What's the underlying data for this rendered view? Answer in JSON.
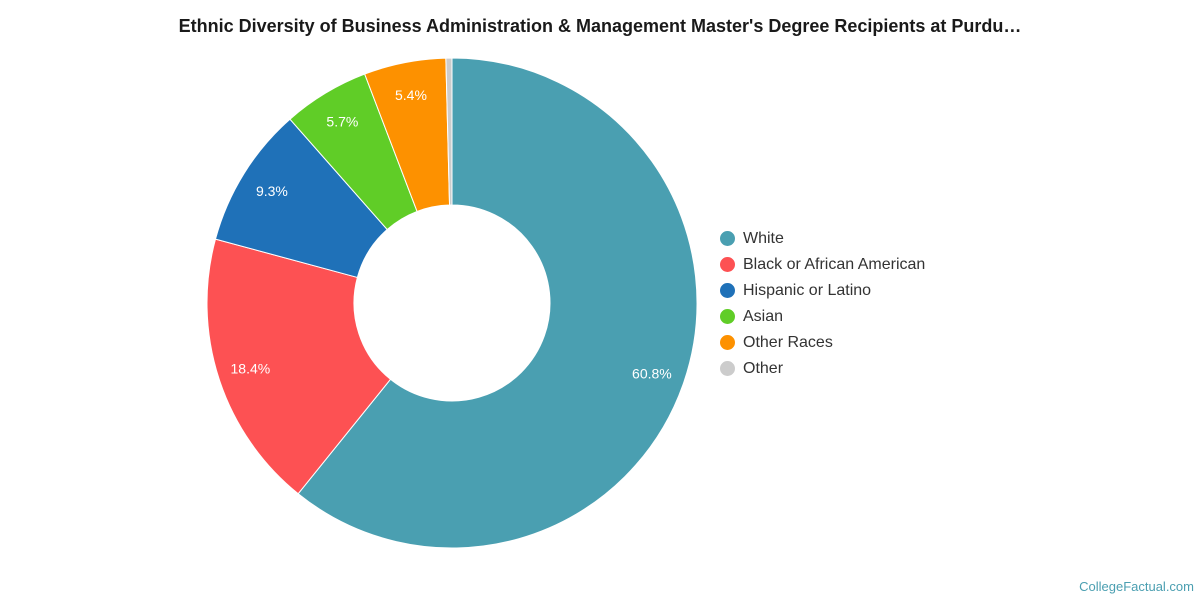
{
  "title": "Ethnic Diversity of Business Administration & Management Master's Degree Recipients at Purdu…",
  "credit": "CollegeFactual.com",
  "chart_data": {
    "type": "pie",
    "variant": "donut",
    "legend_position": "right",
    "labels": [
      "White",
      "Black or African American",
      "Hispanic or Latino",
      "Asian",
      "Other Races",
      "Other"
    ],
    "values": [
      60.8,
      18.4,
      9.3,
      5.7,
      5.4,
      0.4
    ],
    "data_labels": [
      "60.8%",
      "18.4%",
      "9.3%",
      "5.7%",
      "5.4%",
      ""
    ],
    "colors": [
      "#4a9fb1",
      "#fd5153",
      "#1f71b8",
      "#60cd27",
      "#fd9100",
      "#cccccc"
    ]
  }
}
